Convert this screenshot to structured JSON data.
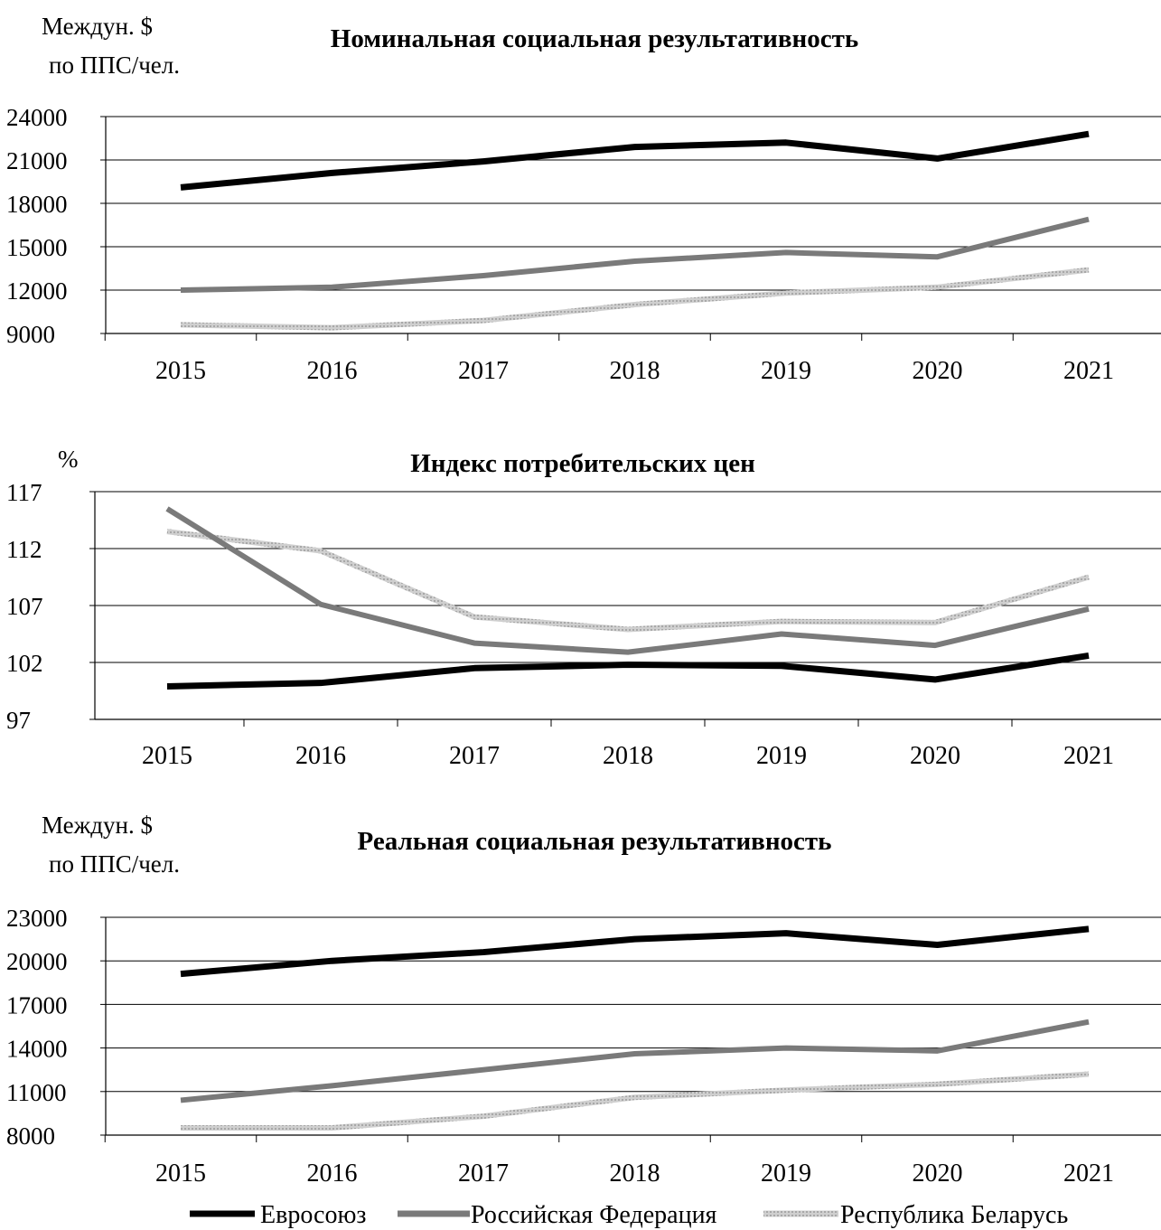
{
  "chart_data": [
    {
      "type": "line",
      "title": "Номинальная социальная результативность",
      "ylabel_line1": "Междун. $",
      "ylabel_line2": "по ППС/чел.",
      "categories": [
        "2015",
        "2016",
        "2017",
        "2018",
        "2019",
        "2020",
        "2021"
      ],
      "ylim": [
        9000,
        24000
      ],
      "yticks": [
        9000,
        12000,
        15000,
        18000,
        21000,
        24000
      ],
      "grid": true,
      "series": [
        {
          "name": "Евросоюз",
          "values": [
            19100,
            20100,
            20900,
            21900,
            22200,
            21100,
            22800
          ]
        },
        {
          "name": "Российская Федерация",
          "values": [
            12000,
            12200,
            13000,
            14000,
            14600,
            14300,
            16900
          ]
        },
        {
          "name": "Республика Беларусь",
          "values": [
            9600,
            9400,
            9900,
            11000,
            11800,
            12200,
            13400
          ]
        }
      ]
    },
    {
      "type": "line",
      "title": "Индекс потребительских цен",
      "ylabel_line1": "%",
      "ylabel_line2": "",
      "categories": [
        "2015",
        "2016",
        "2017",
        "2018",
        "2019",
        "2020",
        "2021"
      ],
      "ylim": [
        97,
        117
      ],
      "yticks": [
        97,
        102,
        107,
        112,
        117
      ],
      "grid": true,
      "series": [
        {
          "name": "Евросоюз",
          "values": [
            99.9,
            100.2,
            101.5,
            101.8,
            101.7,
            100.5,
            102.6
          ]
        },
        {
          "name": "Российская Федерация",
          "values": [
            115.5,
            107.1,
            103.7,
            102.9,
            104.5,
            103.5,
            106.7
          ]
        },
        {
          "name": "Республика Беларусь",
          "values": [
            113.5,
            111.8,
            106.0,
            104.9,
            105.6,
            105.5,
            109.5
          ]
        }
      ]
    },
    {
      "type": "line",
      "title": "Реальная социальная результативность",
      "ylabel_line1": "Междун. $",
      "ylabel_line2": "по ППС/чел.",
      "categories": [
        "2015",
        "2016",
        "2017",
        "2018",
        "2019",
        "2020",
        "2021"
      ],
      "ylim": [
        8000,
        23000
      ],
      "yticks": [
        8000,
        11000,
        14000,
        17000,
        20000,
        23000
      ],
      "grid": true,
      "series": [
        {
          "name": "Евросоюз",
          "values": [
            19100,
            20000,
            20600,
            21500,
            21900,
            21100,
            22200
          ]
        },
        {
          "name": "Российская Федерация",
          "values": [
            10400,
            11400,
            12500,
            13600,
            14000,
            13800,
            15800
          ]
        },
        {
          "name": "Республика Беларусь",
          "values": [
            8500,
            8500,
            9300,
            10600,
            11100,
            11500,
            12200
          ]
        }
      ]
    }
  ],
  "legend": {
    "placement": "bottom",
    "items": [
      {
        "name": "Евросоюз",
        "color": "#000000"
      },
      {
        "name": "Российская Федерация",
        "color": "#7a7a7a"
      },
      {
        "name": "Республика Беларусь",
        "color": "#c4c4c4"
      }
    ]
  },
  "series_colors": [
    "#000000",
    "#7a7a7a",
    "#c4c4c4"
  ]
}
